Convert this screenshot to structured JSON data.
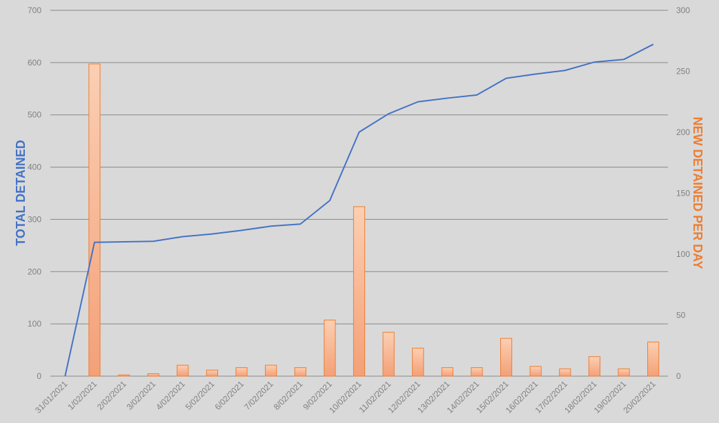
{
  "colors": {
    "background": "#d9d9d9",
    "gridline": "#888888",
    "line": "#4472c4",
    "bar_fill_top": "#fbcfb3",
    "bar_fill_bottom": "#f4a077",
    "bar_stroke": "#ed7d31",
    "tick_text": "#7f7f7f",
    "left_title": "#4472c4",
    "right_title": "#ed7d31"
  },
  "chart_data": {
    "type": "bar+line",
    "categories": [
      "31/01/2021",
      "1/02/2021",
      "2/02/2021",
      "3/02/2021",
      "4/02/2021",
      "5/02/2021",
      "6/02/2021",
      "7/02/2021",
      "8/02/2021",
      "9/02/2021",
      "10/02/2021",
      "11/02/2021",
      "12/02/2021",
      "13/02/2021",
      "14/02/2021",
      "15/02/2021",
      "16/02/2021",
      "17/02/2021",
      "18/02/2021",
      "19/02/2021",
      "20/02/2021"
    ],
    "series": [
      {
        "name": "TOTAL DETAINED",
        "type": "line",
        "axis": "left",
        "values": [
          0,
          256,
          257,
          258,
          267,
          272,
          279,
          287,
          291,
          336,
          467,
          502,
          525,
          532,
          538,
          570,
          578,
          585,
          601,
          606,
          635
        ]
      },
      {
        "name": "NEW DETAINED PER DAY",
        "type": "bar",
        "axis": "right",
        "values": [
          0,
          256,
          1,
          2,
          9,
          5,
          7,
          9,
          7,
          46,
          139,
          36,
          23,
          7,
          7,
          31,
          8,
          6,
          16,
          6,
          28
        ]
      }
    ],
    "y_left": {
      "label": "TOTAL DETAINED",
      "ylim": [
        0,
        700
      ],
      "ticks": [
        "0",
        "100",
        "200",
        "300",
        "400",
        "500",
        "600",
        "700"
      ]
    },
    "y_right": {
      "label": "NEW DETAINED PER DAY",
      "ylim": [
        0,
        300
      ],
      "ticks": [
        "0",
        "50",
        "100",
        "150",
        "200",
        "250",
        "300"
      ]
    },
    "grid": true,
    "legend": "none"
  }
}
